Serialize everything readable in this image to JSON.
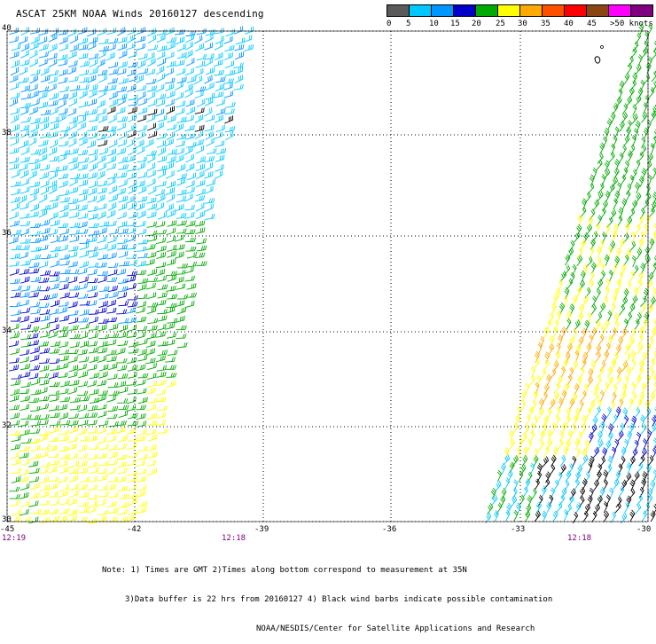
{
  "title": "ASCAT 25KM NOAA Winds 20160127 descending",
  "scale": {
    "labels": [
      "0",
      "5",
      "10",
      "15",
      "20",
      "25",
      "30",
      "35",
      "40",
      "45",
      ">50 knots"
    ],
    "colors": [
      "#5a5a5a",
      "#00c8ff",
      "#0096ff",
      "#0000c8",
      "#00aa00",
      "#ffff00",
      "#ffaa00",
      "#ff5000",
      "#ff0000",
      "#8b4513",
      "#ff00ff",
      "#800080"
    ]
  },
  "axes": {
    "lon_labels": [
      "-45",
      "-42",
      "-39",
      "-36",
      "-33",
      "-30"
    ],
    "lat_labels": [
      "40",
      "38",
      "36",
      "34",
      "32",
      "30"
    ]
  },
  "times": {
    "left": "12:19",
    "mid": "12:18",
    "right": "12:18"
  },
  "notes": {
    "line1": "Note: 1) Times are GMT 2)Times along bottom correspond to measurement at 35N",
    "line2": "3)Data buffer is 22 hrs from 20160127 4) Black wind barbs indicate possible contamination",
    "line3": "NOAA/NESDIS/Center for Satellite Applications and Research"
  }
}
